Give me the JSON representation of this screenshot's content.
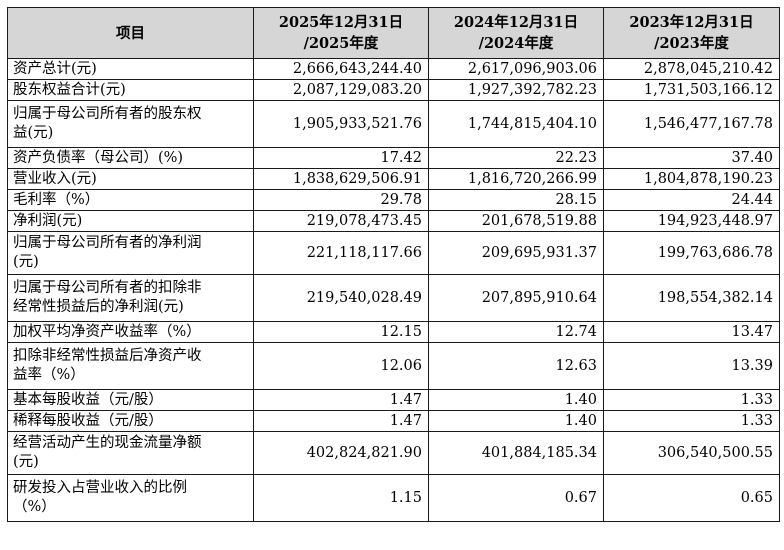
{
  "header": {
    "item": "项目",
    "col1": [
      "2025年12月31日",
      "/2025年度"
    ],
    "col2": [
      "2024年12月31日",
      "/2024年度"
    ],
    "col3": [
      "2023年12月31日",
      "/2023年度"
    ]
  },
  "rows": [
    {
      "label": [
        "资产总计(元)"
      ],
      "v": [
        "2,666,643,244.40",
        "2,617,096,903.06",
        "2,878,045,210.42"
      ]
    },
    {
      "label": [
        "股东权益合计(元)"
      ],
      "v": [
        "2,087,129,083.20",
        "1,927,392,782.23",
        "1,731,503,166.12"
      ]
    },
    {
      "label": [
        "归属于母公司所有者的股东权",
        "益(元)"
      ],
      "v": [
        "1,905,933,521.76",
        "1,744,815,404.10",
        "1,546,477,167.78"
      ]
    },
    {
      "label": [
        "资产负债率（母公司）(%)"
      ],
      "v": [
        "17.42",
        "22.23",
        "37.40"
      ]
    },
    {
      "label": [
        "营业收入(元)"
      ],
      "v": [
        "1,838,629,506.91",
        "1,816,720,266.99",
        "1,804,878,190.23"
      ]
    },
    {
      "label": [
        "毛利率（%）"
      ],
      "v": [
        "29.78",
        "28.15",
        "24.44"
      ]
    },
    {
      "label": [
        "净利润(元)"
      ],
      "v": [
        "219,078,473.45",
        "201,678,519.88",
        "194,923,448.97"
      ]
    },
    {
      "label": [
        "归属于母公司所有者的净利润",
        "(元)"
      ],
      "v": [
        "221,118,117.66",
        "209,695,931.37",
        "199,763,686.78"
      ]
    },
    {
      "label": [
        "归属于母公司所有者的扣除非",
        "经常性损益后的净利润(元)"
      ],
      "v": [
        "219,540,028.49",
        "207,895,910.64",
        "198,554,382.14"
      ]
    },
    {
      "label": [
        "加权平均净资产收益率（%）"
      ],
      "v": [
        "12.15",
        "12.74",
        "13.47"
      ]
    },
    {
      "label": [
        "扣除非经常性损益后净资产收",
        "益率（%）"
      ],
      "v": [
        "12.06",
        "12.63",
        "13.39"
      ]
    },
    {
      "label": [
        "基本每股收益（元/股）"
      ],
      "v": [
        "1.47",
        "1.40",
        "1.33"
      ]
    },
    {
      "label": [
        "稀释每股收益（元/股）"
      ],
      "v": [
        "1.47",
        "1.40",
        "1.33"
      ]
    },
    {
      "label": [
        "经营活动产生的现金流量净额",
        "(元)"
      ],
      "v": [
        "402,824,821.90",
        "401,884,185.34",
        "306,540,500.55"
      ]
    },
    {
      "label": [
        "研发投入占营业收入的比例",
        "（%）"
      ],
      "v": [
        "1.15",
        "0.67",
        "0.65"
      ]
    }
  ]
}
